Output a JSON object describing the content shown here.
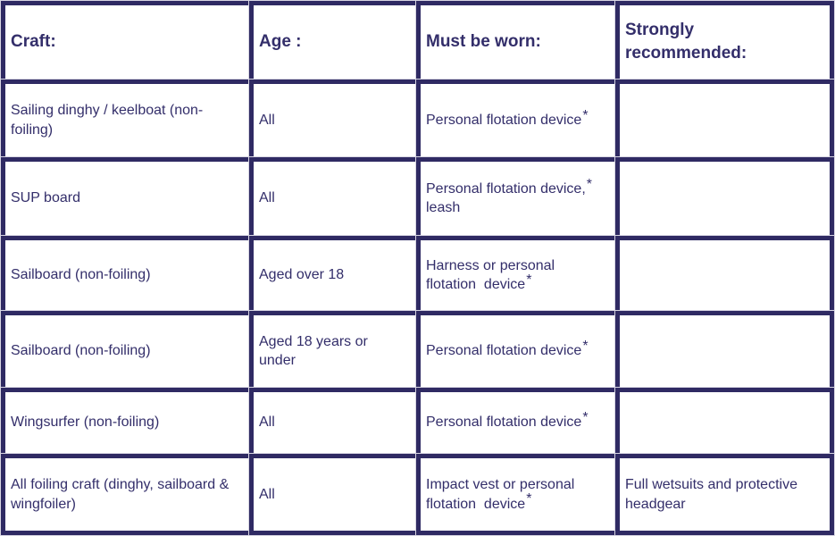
{
  "colors": {
    "border_navy": "#2f2a63",
    "text_navy": "#332e6a",
    "outline_light": "#d8d6e3",
    "cell_background": "#ffffff"
  },
  "table": {
    "headers": [
      {
        "label": "Craft:"
      },
      {
        "label": "Age :"
      },
      {
        "label": "Must be worn:"
      },
      {
        "label": "Strongly recommended:"
      }
    ],
    "rows": [
      {
        "craft": "Sailing dinghy / keelboat (non-foiling)",
        "age": "All",
        "worn": {
          "pre": "Personal flotation device",
          "sup": "*",
          "post": ""
        },
        "recommended": ""
      },
      {
        "craft": "SUP board",
        "age": "All",
        "worn": {
          "pre": "Personal flotation device,",
          "sup": "*",
          "post": " leash"
        },
        "recommended": ""
      },
      {
        "craft": "Sailboard (non-foiling)",
        "age": "Aged over 18",
        "worn": {
          "pre": "Harness or personal flotation  device",
          "sup": "*",
          "post": ""
        },
        "recommended": ""
      },
      {
        "craft": "Sailboard (non-foiling)",
        "age": "Aged 18 years or under",
        "worn": {
          "pre": "Personal flotation device",
          "sup": "*",
          "post": ""
        },
        "recommended": ""
      },
      {
        "craft": "Wingsurfer (non-foiling)",
        "age": "All",
        "worn": {
          "pre": "Personal flotation device",
          "sup": "*",
          "post": ""
        },
        "recommended": ""
      },
      {
        "craft": "All foiling craft (dinghy, sailboard & wingfoiler)",
        "age": "All",
        "worn": {
          "pre": "Impact vest or personal flotation  device",
          "sup": "*",
          "post": ""
        },
        "recommended": "Full wetsuits and protective headgear"
      }
    ]
  }
}
